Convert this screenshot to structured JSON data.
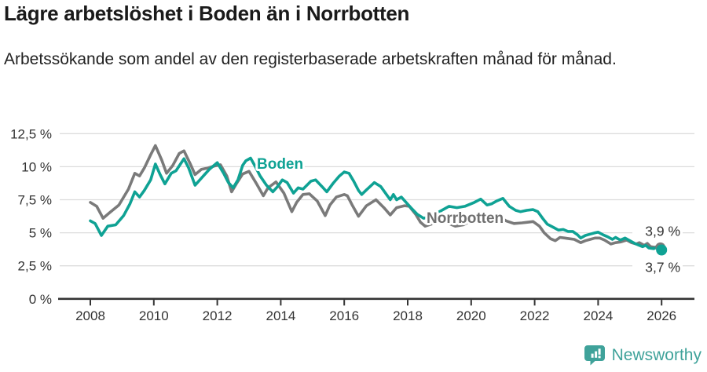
{
  "header": {
    "title": "Lägre arbetslöshet i Boden än i Norrbotten",
    "subtitle": "Arbetssökande som andel av den registerbaserade arbetskraften månad för månad."
  },
  "chart_data": {
    "type": "line",
    "title": "Lägre arbetslöshet i Boden än i Norrbotten",
    "subtitle": "Arbetssökande som andel av den registerbaserade arbetskraften månad för månad.",
    "xlabel": "",
    "ylabel": "",
    "x_unit": "decimal year (monthly observations)",
    "xlim": [
      2007.9,
      2027
    ],
    "ylim": [
      0,
      13.3
    ],
    "grid": true,
    "x_ticks": [
      {
        "value": 2008,
        "label": "2008"
      },
      {
        "value": 2010,
        "label": "2010"
      },
      {
        "value": 2012,
        "label": "2012"
      },
      {
        "value": 2014,
        "label": "2014"
      },
      {
        "value": 2016,
        "label": "2016"
      },
      {
        "value": 2018,
        "label": "2018"
      },
      {
        "value": 2020,
        "label": "2020"
      },
      {
        "value": 2022,
        "label": "2022"
      },
      {
        "value": 2024,
        "label": "2024"
      },
      {
        "value": 2026,
        "label": "2026"
      }
    ],
    "y_ticks": [
      {
        "value": 0,
        "label": "0 %"
      },
      {
        "value": 2.5,
        "label": "2,5 %"
      },
      {
        "value": 5,
        "label": "5 %"
      },
      {
        "value": 7.5,
        "label": "7,5 %"
      },
      {
        "value": 10,
        "label": "10 %"
      },
      {
        "value": 12.5,
        "label": "12,5 %"
      }
    ],
    "legend_position": "inline-labels-on-lines",
    "series": [
      {
        "name": "Norrbotten",
        "color": "#7a7a7a",
        "label_color": "#707070",
        "end_label": "3,9 %",
        "end_value": 3.9,
        "points": [
          [
            2008.0,
            7.3
          ],
          [
            2008.2,
            7.0
          ],
          [
            2008.4,
            6.1
          ],
          [
            2008.6,
            6.5
          ],
          [
            2008.9,
            7.1
          ],
          [
            2009.2,
            8.3
          ],
          [
            2009.4,
            9.5
          ],
          [
            2009.55,
            9.3
          ],
          [
            2009.7,
            9.9
          ],
          [
            2009.9,
            10.9
          ],
          [
            2010.05,
            11.6
          ],
          [
            2010.25,
            10.5
          ],
          [
            2010.4,
            9.5
          ],
          [
            2010.6,
            10.1
          ],
          [
            2010.8,
            11.0
          ],
          [
            2010.95,
            11.2
          ],
          [
            2011.15,
            10.2
          ],
          [
            2011.3,
            9.4
          ],
          [
            2011.5,
            9.8
          ],
          [
            2011.7,
            9.9
          ],
          [
            2011.9,
            10.05
          ],
          [
            2012.1,
            10.15
          ],
          [
            2012.3,
            9.3
          ],
          [
            2012.45,
            8.1
          ],
          [
            2012.6,
            8.7
          ],
          [
            2012.8,
            9.45
          ],
          [
            2013.0,
            9.65
          ],
          [
            2013.25,
            8.65
          ],
          [
            2013.45,
            7.8
          ],
          [
            2013.6,
            8.4
          ],
          [
            2013.85,
            8.85
          ],
          [
            2014.1,
            8.0
          ],
          [
            2014.35,
            6.6
          ],
          [
            2014.5,
            7.3
          ],
          [
            2014.7,
            7.9
          ],
          [
            2014.9,
            7.95
          ],
          [
            2015.15,
            7.4
          ],
          [
            2015.4,
            6.3
          ],
          [
            2015.55,
            7.1
          ],
          [
            2015.75,
            7.7
          ],
          [
            2016.0,
            7.9
          ],
          [
            2016.1,
            7.8
          ],
          [
            2016.25,
            7.1
          ],
          [
            2016.45,
            6.25
          ],
          [
            2016.7,
            7.05
          ],
          [
            2017.0,
            7.5
          ],
          [
            2017.25,
            6.9
          ],
          [
            2017.45,
            6.35
          ],
          [
            2017.65,
            6.9
          ],
          [
            2017.9,
            7.05
          ],
          [
            2018.05,
            7.0
          ],
          [
            2018.25,
            6.4
          ],
          [
            2018.4,
            5.8
          ],
          [
            2018.55,
            5.5
          ],
          [
            2018.8,
            5.7
          ],
          [
            2019.05,
            5.9
          ],
          [
            2019.3,
            5.7
          ],
          [
            2019.5,
            5.5
          ],
          [
            2019.75,
            5.6
          ],
          [
            2020.0,
            5.9
          ],
          [
            2020.3,
            6.3
          ],
          [
            2020.6,
            6.1
          ],
          [
            2020.9,
            6.2
          ],
          [
            2021.1,
            5.9
          ],
          [
            2021.35,
            5.7
          ],
          [
            2021.6,
            5.75
          ],
          [
            2021.8,
            5.8
          ],
          [
            2021.95,
            5.85
          ],
          [
            2022.15,
            5.5
          ],
          [
            2022.3,
            5.0
          ],
          [
            2022.5,
            4.55
          ],
          [
            2022.65,
            4.4
          ],
          [
            2022.8,
            4.65
          ],
          [
            2022.95,
            4.6
          ],
          [
            2023.1,
            4.55
          ],
          [
            2023.25,
            4.5
          ],
          [
            2023.45,
            4.25
          ],
          [
            2023.6,
            4.4
          ],
          [
            2023.75,
            4.5
          ],
          [
            2023.9,
            4.6
          ],
          [
            2024.05,
            4.6
          ],
          [
            2024.2,
            4.45
          ],
          [
            2024.4,
            4.15
          ],
          [
            2024.55,
            4.25
          ],
          [
            2024.7,
            4.3
          ],
          [
            2024.9,
            4.45
          ],
          [
            2025.05,
            4.25
          ],
          [
            2025.2,
            4.15
          ],
          [
            2025.3,
            4.25
          ],
          [
            2025.45,
            4.05
          ],
          [
            2025.55,
            4.2
          ],
          [
            2025.65,
            3.95
          ],
          [
            2025.8,
            3.9
          ],
          [
            2025.9,
            4.05
          ],
          [
            2026.0,
            3.9
          ]
        ]
      },
      {
        "name": "Boden",
        "color": "#0FA294",
        "label_color": "#0FA294",
        "end_label": "3,7 %",
        "end_value": 3.7,
        "points": [
          [
            2008.0,
            5.9
          ],
          [
            2008.15,
            5.7
          ],
          [
            2008.35,
            4.8
          ],
          [
            2008.55,
            5.5
          ],
          [
            2008.8,
            5.6
          ],
          [
            2009.05,
            6.3
          ],
          [
            2009.25,
            7.2
          ],
          [
            2009.4,
            8.1
          ],
          [
            2009.55,
            7.7
          ],
          [
            2009.7,
            8.2
          ],
          [
            2009.9,
            9.0
          ],
          [
            2010.05,
            10.2
          ],
          [
            2010.2,
            9.4
          ],
          [
            2010.35,
            8.7
          ],
          [
            2010.55,
            9.5
          ],
          [
            2010.7,
            9.7
          ],
          [
            2010.95,
            10.6
          ],
          [
            2011.1,
            9.9
          ],
          [
            2011.3,
            8.6
          ],
          [
            2011.45,
            9.0
          ],
          [
            2011.6,
            9.4
          ],
          [
            2011.75,
            9.8
          ],
          [
            2012.0,
            10.3
          ],
          [
            2012.2,
            9.5
          ],
          [
            2012.35,
            8.8
          ],
          [
            2012.5,
            8.4
          ],
          [
            2012.65,
            9.0
          ],
          [
            2012.8,
            10.1
          ],
          [
            2012.9,
            10.45
          ],
          [
            2013.05,
            10.65
          ],
          [
            2013.2,
            10.0
          ],
          [
            2013.35,
            9.3
          ],
          [
            2013.55,
            8.6
          ],
          [
            2013.75,
            8.1
          ],
          [
            2013.9,
            8.5
          ],
          [
            2014.05,
            9.0
          ],
          [
            2014.2,
            8.8
          ],
          [
            2014.4,
            8.0
          ],
          [
            2014.55,
            8.4
          ],
          [
            2014.7,
            8.3
          ],
          [
            2014.95,
            8.9
          ],
          [
            2015.1,
            9.0
          ],
          [
            2015.3,
            8.5
          ],
          [
            2015.45,
            8.1
          ],
          [
            2015.65,
            8.75
          ],
          [
            2015.85,
            9.3
          ],
          [
            2016.0,
            9.6
          ],
          [
            2016.15,
            9.5
          ],
          [
            2016.3,
            8.9
          ],
          [
            2016.45,
            8.2
          ],
          [
            2016.55,
            7.9
          ],
          [
            2016.7,
            8.25
          ],
          [
            2016.95,
            8.8
          ],
          [
            2017.15,
            8.5
          ],
          [
            2017.3,
            8.0
          ],
          [
            2017.45,
            7.5
          ],
          [
            2017.55,
            7.9
          ],
          [
            2017.65,
            7.5
          ],
          [
            2017.8,
            7.7
          ],
          [
            2017.95,
            7.3
          ],
          [
            2018.1,
            6.9
          ],
          [
            2018.3,
            6.4
          ],
          [
            2018.5,
            6.1
          ],
          [
            2018.7,
            6.2
          ],
          [
            2019.0,
            6.6
          ],
          [
            2019.3,
            7.0
          ],
          [
            2019.55,
            6.9
          ],
          [
            2019.8,
            7.0
          ],
          [
            2020.1,
            7.3
          ],
          [
            2020.3,
            7.55
          ],
          [
            2020.5,
            7.1
          ],
          [
            2020.65,
            7.2
          ],
          [
            2020.8,
            7.4
          ],
          [
            2021.0,
            7.6
          ],
          [
            2021.2,
            7.0
          ],
          [
            2021.4,
            6.7
          ],
          [
            2021.55,
            6.6
          ],
          [
            2021.75,
            6.7
          ],
          [
            2021.95,
            6.75
          ],
          [
            2022.1,
            6.6
          ],
          [
            2022.25,
            6.1
          ],
          [
            2022.4,
            5.65
          ],
          [
            2022.6,
            5.4
          ],
          [
            2022.75,
            5.2
          ],
          [
            2022.9,
            5.25
          ],
          [
            2023.05,
            5.1
          ],
          [
            2023.2,
            5.1
          ],
          [
            2023.35,
            4.85
          ],
          [
            2023.45,
            4.6
          ],
          [
            2023.6,
            4.8
          ],
          [
            2023.75,
            4.9
          ],
          [
            2023.9,
            5.0
          ],
          [
            2024.0,
            5.05
          ],
          [
            2024.15,
            4.85
          ],
          [
            2024.3,
            4.7
          ],
          [
            2024.45,
            4.5
          ],
          [
            2024.55,
            4.65
          ],
          [
            2024.7,
            4.45
          ],
          [
            2024.85,
            4.6
          ],
          [
            2025.0,
            4.4
          ],
          [
            2025.15,
            4.2
          ],
          [
            2025.25,
            4.1
          ],
          [
            2025.4,
            3.95
          ],
          [
            2025.5,
            4.05
          ],
          [
            2025.6,
            3.85
          ],
          [
            2025.75,
            3.8
          ],
          [
            2025.85,
            3.9
          ],
          [
            2026.0,
            3.7
          ]
        ]
      }
    ],
    "colors": {
      "boden_teal": "#0FA294",
      "norrbotten_gray": "#7a7a7a",
      "gridline": "#dcdcdc",
      "axis": "#333333",
      "text": "#333333"
    }
  },
  "footer": {
    "brand": "Newsworthy",
    "brand_color": "#3FA29A"
  }
}
